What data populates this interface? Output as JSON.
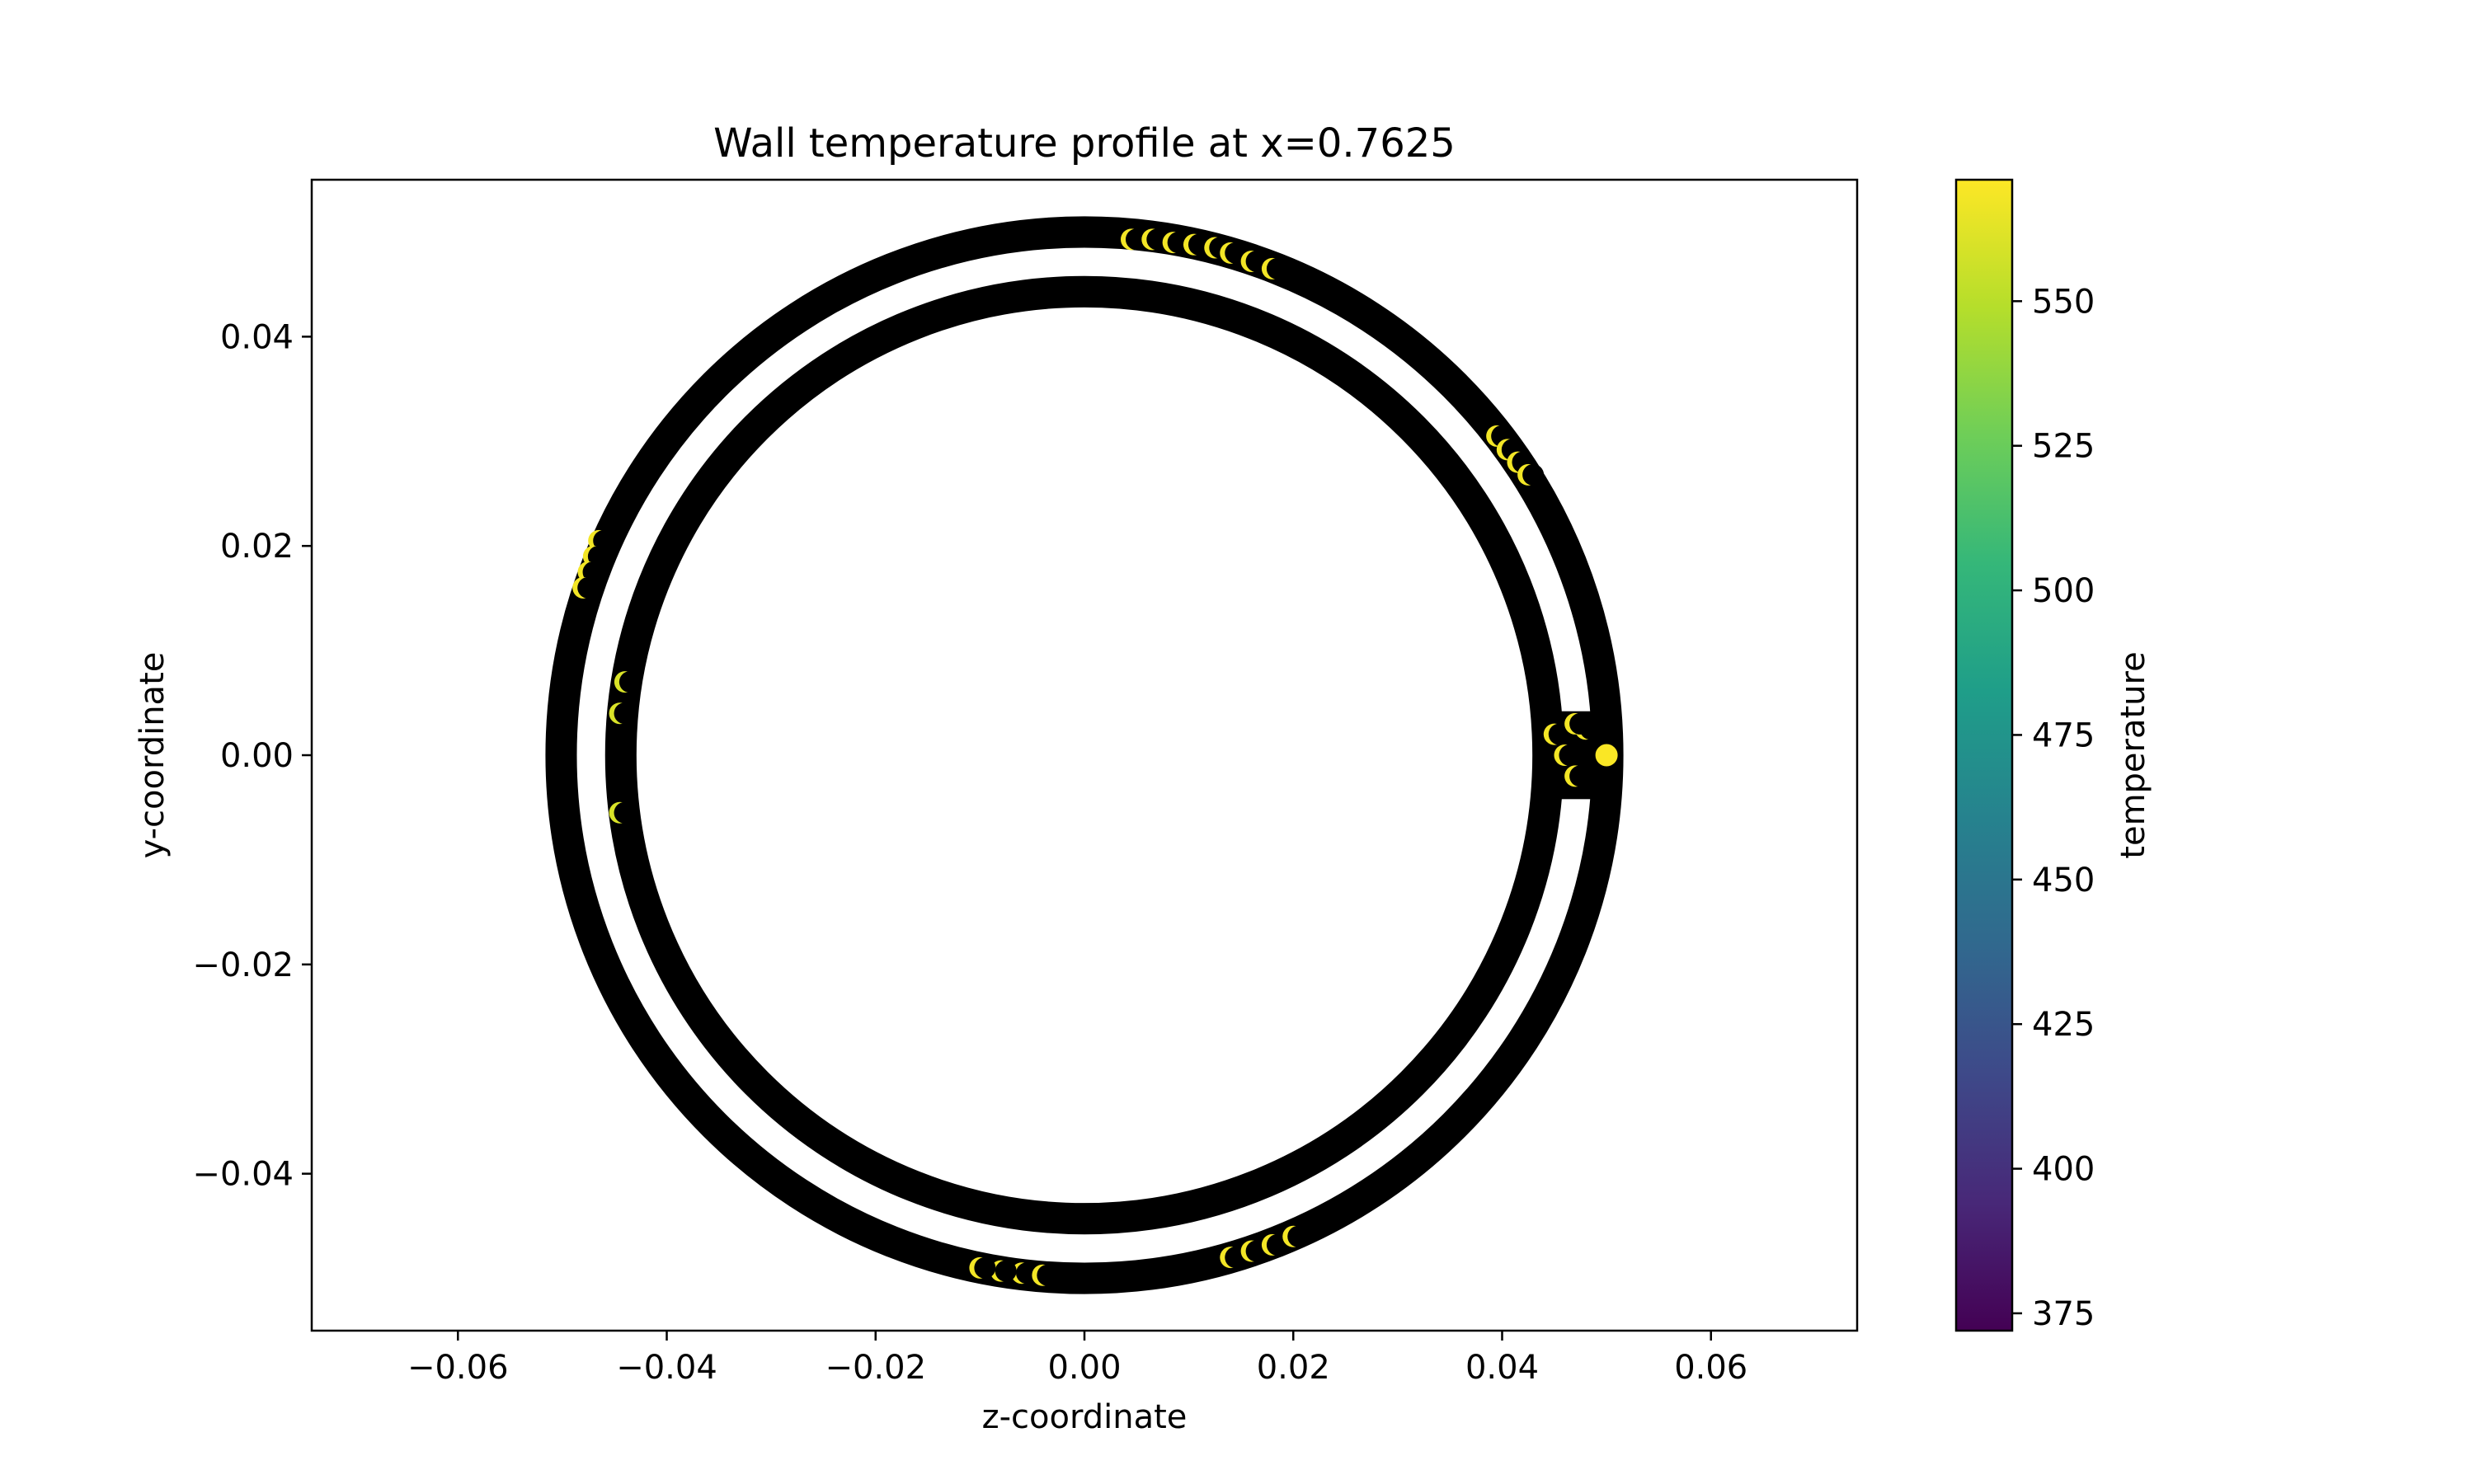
{
  "chart_data": {
    "type": "scatter",
    "title": "Wall temperature profile at x=0.7625",
    "xlabel": "z-coordinate",
    "ylabel": "y-coordinate",
    "xlim": [
      -0.074,
      0.074
    ],
    "ylim": [
      -0.055,
      0.055
    ],
    "xticks": [
      -0.06,
      -0.04,
      -0.02,
      0.0,
      0.02,
      0.04,
      0.06
    ],
    "xtick_labels": [
      "−0.06",
      "−0.04",
      "−0.02",
      "0.00",
      "0.02",
      "0.04",
      "0.06"
    ],
    "yticks": [
      -0.04,
      -0.02,
      0.0,
      0.02,
      0.04
    ],
    "ytick_labels": [
      "−0.04",
      "−0.02",
      "0.00",
      "0.02",
      "0.04"
    ],
    "grid": false,
    "point_edge_color": "#000000",
    "rings": [
      {
        "name": "",
        "radius_outer": 0.0515,
        "radius_inner": 0.0485
      },
      {
        "name": "",
        "radius_outer": 0.0458,
        "radius_inner": 0.0428
      }
    ],
    "hot_spots": [
      {
        "z": 0.0045,
        "y": 0.0493,
        "temperature": 568
      },
      {
        "z": 0.0065,
        "y": 0.0493,
        "temperature": 568
      },
      {
        "z": 0.0085,
        "y": 0.049,
        "temperature": 568
      },
      {
        "z": 0.0105,
        "y": 0.0488,
        "temperature": 568
      },
      {
        "z": 0.0125,
        "y": 0.0485,
        "temperature": 568
      },
      {
        "z": 0.014,
        "y": 0.048,
        "temperature": 568
      },
      {
        "z": 0.016,
        "y": 0.0472,
        "temperature": 568
      },
      {
        "z": 0.018,
        "y": 0.0465,
        "temperature": 568
      },
      {
        "z": 0.0395,
        "y": 0.0305,
        "temperature": 568
      },
      {
        "z": 0.0405,
        "y": 0.0292,
        "temperature": 568
      },
      {
        "z": 0.0415,
        "y": 0.028,
        "temperature": 568
      },
      {
        "z": 0.0425,
        "y": 0.0268,
        "temperature": 568
      },
      {
        "z": -0.0465,
        "y": 0.0205,
        "temperature": 568
      },
      {
        "z": -0.047,
        "y": 0.019,
        "temperature": 568
      },
      {
        "z": -0.0475,
        "y": 0.0175,
        "temperature": 568
      },
      {
        "z": -0.048,
        "y": 0.016,
        "temperature": 568
      },
      {
        "z": -0.044,
        "y": 0.007,
        "temperature": 560
      },
      {
        "z": -0.0445,
        "y": 0.004,
        "temperature": 560
      },
      {
        "z": -0.0445,
        "y": -0.0055,
        "temperature": 560
      },
      {
        "z": -0.006,
        "y": -0.0495,
        "temperature": 568
      },
      {
        "z": -0.008,
        "y": -0.0493,
        "temperature": 568
      },
      {
        "z": -0.01,
        "y": -0.049,
        "temperature": 568
      },
      {
        "z": -0.004,
        "y": -0.0497,
        "temperature": 568
      },
      {
        "z": 0.014,
        "y": -0.048,
        "temperature": 568
      },
      {
        "z": 0.016,
        "y": -0.0474,
        "temperature": 568
      },
      {
        "z": 0.018,
        "y": -0.0468,
        "temperature": 568
      },
      {
        "z": 0.02,
        "y": -0.046,
        "temperature": 568
      },
      {
        "z": 0.045,
        "y": 0.002,
        "temperature": 568
      },
      {
        "z": 0.046,
        "y": 0.0,
        "temperature": 568
      },
      {
        "z": 0.047,
        "y": -0.002,
        "temperature": 568
      },
      {
        "z": 0.048,
        "y": 0.0025,
        "temperature": 568
      },
      {
        "z": 0.047,
        "y": 0.003,
        "temperature": 568
      },
      {
        "z": 0.05,
        "y": 0.0,
        "temperature": 570
      }
    ],
    "gap_block": {
      "z0": 0.044,
      "z1": 0.051,
      "y0": -0.0042,
      "y1": 0.0042
    },
    "colorbar": {
      "label": "temperature",
      "colormap": "viridis",
      "vmin": 372,
      "vmax": 571,
      "ticks": [
        375,
        400,
        425,
        450,
        475,
        500,
        525,
        550
      ],
      "tick_labels": [
        "375",
        "400",
        "425",
        "450",
        "475",
        "500",
        "525",
        "550"
      ],
      "stops": [
        "#440154",
        "#482878",
        "#3e4989",
        "#31688e",
        "#26828e",
        "#1f9e89",
        "#35b779",
        "#6ece58",
        "#b5de2b",
        "#fde725"
      ]
    }
  }
}
